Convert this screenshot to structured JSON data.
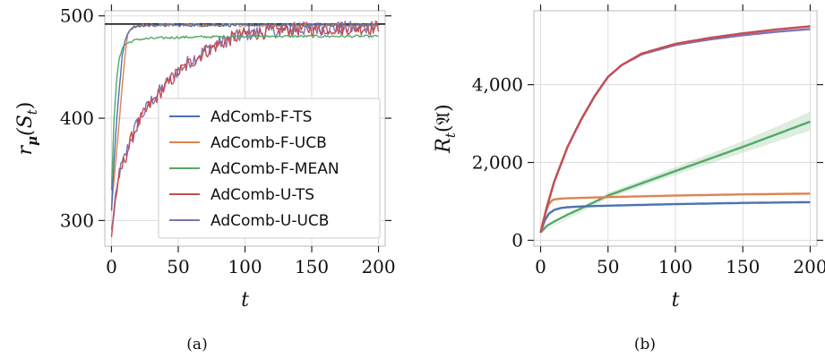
{
  "chart_data": [
    {
      "type": "line",
      "caption": "(a)",
      "xlabel": "t",
      "ylabel": "r_μ(S_t)",
      "ylabel_parts": {
        "main": "r",
        "sub_mu": "μ",
        "paren": "(S",
        "sub_t": "t",
        "close": ")"
      },
      "xlim": [
        -5,
        205
      ],
      "ylim": [
        275,
        505
      ],
      "xticks": [
        0,
        50,
        100,
        150,
        200
      ],
      "xtick_labels": [
        "0",
        "50",
        "100",
        "150",
        "200"
      ],
      "yticks": [
        300,
        400,
        500
      ],
      "ytick_labels": [
        "300",
        "400",
        "500"
      ],
      "grid": true,
      "legend_position": "lower-right",
      "reference_line": {
        "y": 492,
        "color": "#000000"
      },
      "series": [
        {
          "name": "AdComb-F-TS",
          "color": "#4c72b0",
          "x": [
            0,
            2,
            4,
            6,
            8,
            10,
            12,
            15,
            20,
            30,
            50,
            100,
            150,
            200
          ],
          "y": [
            310,
            360,
            400,
            430,
            460,
            475,
            483,
            488,
            490,
            491,
            491,
            491,
            491,
            491
          ]
        },
        {
          "name": "AdComb-F-UCB",
          "color": "#dd8452",
          "x": [
            0,
            2,
            4,
            6,
            8,
            10,
            12,
            15,
            20,
            30,
            50,
            100,
            150,
            200
          ],
          "y": [
            310,
            340,
            370,
            400,
            430,
            460,
            480,
            488,
            490,
            491,
            491,
            491,
            491,
            491
          ]
        },
        {
          "name": "AdComb-F-MEAN",
          "color": "#55a868",
          "x": [
            0,
            2,
            4,
            6,
            8,
            10,
            15,
            20,
            30,
            50,
            100,
            150,
            200
          ],
          "y": [
            330,
            400,
            440,
            460,
            468,
            472,
            475,
            477,
            478,
            479,
            480,
            480,
            480
          ]
        },
        {
          "name": "AdComb-U-TS",
          "color": "#c44e52",
          "x": [
            0,
            3,
            6,
            10,
            15,
            20,
            25,
            30,
            40,
            50,
            60,
            70,
            80,
            90,
            100,
            120,
            140,
            160,
            180,
            200
          ],
          "y": [
            285,
            320,
            345,
            360,
            380,
            395,
            405,
            415,
            430,
            445,
            455,
            465,
            472,
            478,
            482,
            485,
            487,
            488,
            488,
            489
          ]
        },
        {
          "name": "AdComb-U-UCB",
          "color": "#8172b2",
          "x": [
            0,
            3,
            6,
            10,
            15,
            20,
            25,
            30,
            40,
            50,
            60,
            70,
            80,
            90,
            100,
            120,
            140,
            160,
            180,
            200
          ],
          "y": [
            290,
            322,
            347,
            362,
            382,
            397,
            407,
            417,
            432,
            447,
            457,
            466,
            473,
            478,
            482,
            485,
            487,
            488,
            488,
            489
          ]
        }
      ]
    },
    {
      "type": "line",
      "caption": "(b)",
      "xlabel": "t",
      "ylabel": "R_t(𝔄)",
      "ylabel_parts": {
        "main": "R",
        "sub_t": "t",
        "open": "(",
        "symbol": "𝔄",
        "close": ")"
      },
      "xlim": [
        -5,
        205
      ],
      "ylim": [
        -150,
        5900
      ],
      "xticks": [
        0,
        50,
        100,
        150,
        200
      ],
      "xtick_labels": [
        "0",
        "50",
        "100",
        "150",
        "200"
      ],
      "yticks": [
        0,
        2000,
        4000
      ],
      "ytick_labels": [
        "0",
        "2,000",
        "4,000"
      ],
      "grid": true,
      "series": [
        {
          "name": "AdComb-F-TS",
          "color": "#4c72b0",
          "x": [
            0,
            3,
            6,
            10,
            15,
            20,
            30,
            50,
            100,
            150,
            200
          ],
          "y": [
            200,
            500,
            680,
            780,
            830,
            850,
            870,
            890,
            930,
            960,
            980
          ]
        },
        {
          "name": "AdComb-F-UCB",
          "color": "#dd8452",
          "x": [
            0,
            2,
            4,
            6,
            8,
            10,
            15,
            20,
            50,
            100,
            150,
            200
          ],
          "y": [
            200,
            500,
            750,
            920,
            1010,
            1050,
            1070,
            1080,
            1110,
            1150,
            1180,
            1200
          ]
        },
        {
          "name": "AdComb-F-MEAN",
          "color": "#55a868",
          "x": [
            0,
            5,
            10,
            20,
            30,
            50,
            100,
            150,
            200
          ],
          "y": [
            200,
            380,
            480,
            660,
            820,
            1150,
            1780,
            2400,
            3050
          ],
          "band": [
            [
              0,
              200,
              200
            ],
            [
              50,
              1080,
              1220
            ],
            [
              100,
              1680,
              1880
            ],
            [
              150,
              2250,
              2550
            ],
            [
              200,
              2820,
              3300
            ]
          ]
        },
        {
          "name": "AdComb-U-TS",
          "color": "#c44e52",
          "x": [
            0,
            5,
            10,
            20,
            30,
            40,
            50,
            60,
            75,
            100,
            125,
            150,
            175,
            200
          ],
          "y": [
            200,
            900,
            1500,
            2400,
            3100,
            3700,
            4200,
            4500,
            4800,
            5050,
            5200,
            5320,
            5420,
            5500
          ]
        },
        {
          "name": "AdComb-U-UCB",
          "color": "#8172b2",
          "x": [
            0,
            5,
            10,
            20,
            30,
            40,
            50,
            60,
            75,
            100,
            125,
            150,
            175,
            200
          ],
          "y": [
            200,
            900,
            1500,
            2400,
            3100,
            3700,
            4200,
            4500,
            4780,
            5020,
            5160,
            5270,
            5360,
            5430
          ]
        }
      ]
    }
  ]
}
